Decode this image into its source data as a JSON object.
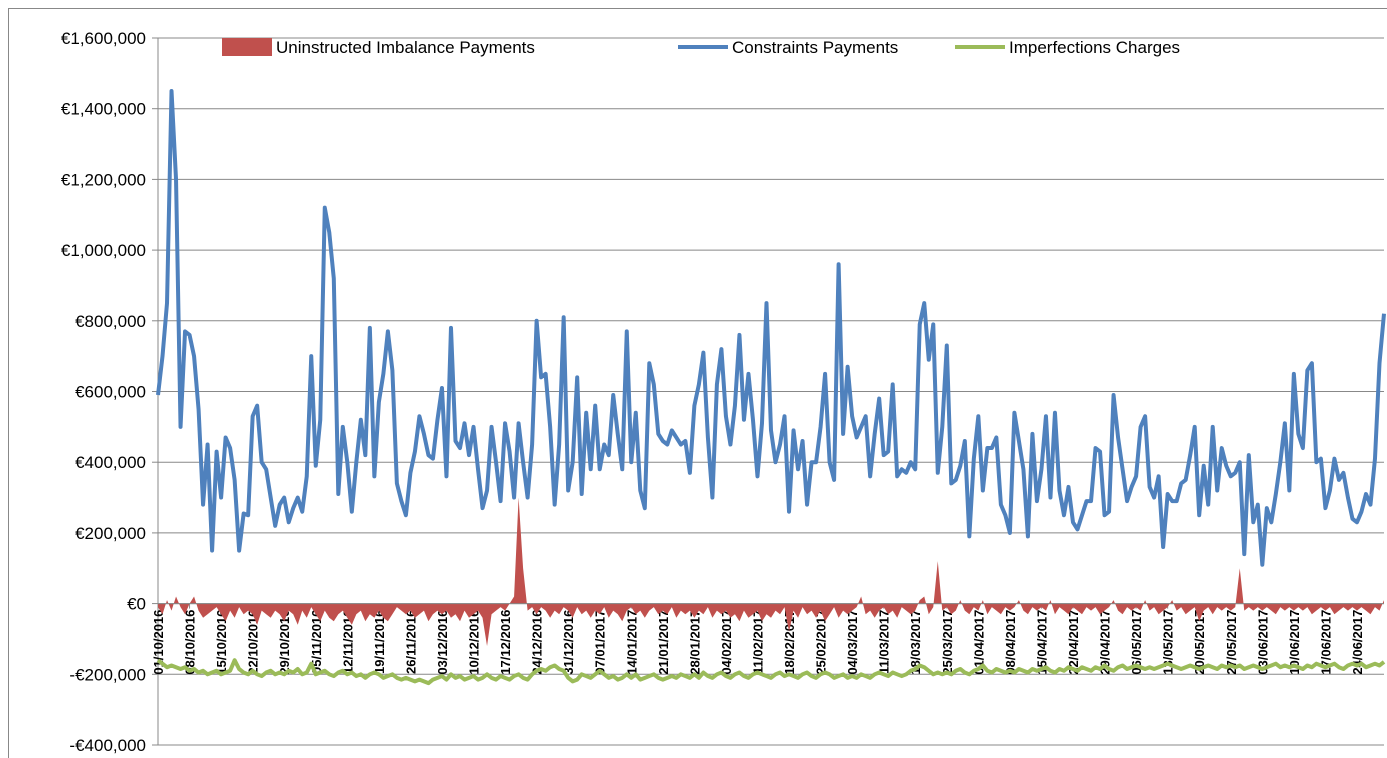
{
  "chart_data": {
    "type": "line",
    "legend": "top",
    "grid": true,
    "ylim": [
      -400000,
      1600000
    ],
    "yticks": [
      {
        "value": -400000,
        "label": "-€400,000"
      },
      {
        "value": -200000,
        "label": "-€200,000"
      },
      {
        "value": 0,
        "label": "€0"
      },
      {
        "value": 200000,
        "label": "€200,000"
      },
      {
        "value": 400000,
        "label": "€400,000"
      },
      {
        "value": 600000,
        "label": "€600,000"
      },
      {
        "value": 800000,
        "label": "€800,000"
      },
      {
        "value": 1000000,
        "label": "€1,000,000"
      },
      {
        "value": 1200000,
        "label": "€1,200,000"
      },
      {
        "value": 1400000,
        "label": "€1,400,000"
      },
      {
        "value": 1600000,
        "label": "€1,600,000"
      }
    ],
    "categories": [
      "01/10/2016",
      null,
      null,
      null,
      null,
      null,
      null,
      "08/10/2016",
      null,
      null,
      null,
      null,
      null,
      null,
      "15/10/2016",
      null,
      null,
      null,
      null,
      null,
      null,
      "22/10/2016",
      null,
      null,
      null,
      null,
      null,
      null,
      "29/10/2016",
      null,
      null,
      null,
      null,
      null,
      null,
      "05/11/2016",
      null,
      null,
      null,
      null,
      null,
      null,
      "12/11/2016",
      null,
      null,
      null,
      null,
      null,
      null,
      "19/11/2016",
      null,
      null,
      null,
      null,
      null,
      null,
      "26/11/2016",
      null,
      null,
      null,
      null,
      null,
      null,
      "03/12/2016",
      null,
      null,
      null,
      null,
      null,
      null,
      "10/12/2016",
      null,
      null,
      null,
      null,
      null,
      null,
      "17/12/2016",
      null,
      null,
      null,
      null,
      null,
      null,
      "24/12/2016",
      null,
      null,
      null,
      null,
      null,
      null,
      "31/12/2016",
      null,
      null,
      null,
      null,
      null,
      null,
      "07/01/2017",
      null,
      null,
      null,
      null,
      null,
      null,
      "14/01/2017",
      null,
      null,
      null,
      null,
      null,
      null,
      "21/01/2017",
      null,
      null,
      null,
      null,
      null,
      null,
      "28/01/2017",
      null,
      null,
      null,
      null,
      null,
      null,
      "04/02/2017",
      null,
      null,
      null,
      null,
      null,
      null,
      "11/02/2017",
      null,
      null,
      null,
      null,
      null,
      null,
      "18/02/2017",
      null,
      null,
      null,
      null,
      null,
      null,
      "25/02/2017",
      null,
      null,
      null,
      null,
      null,
      null,
      "04/03/2017",
      null,
      null,
      null,
      null,
      null,
      null,
      "11/03/2017",
      null,
      null,
      null,
      null,
      null,
      null,
      "18/03/2017",
      null,
      null,
      null,
      null,
      null,
      null,
      "25/03/2017",
      null,
      null,
      null,
      null,
      null,
      null,
      "01/04/2017",
      null,
      null,
      null,
      null,
      null,
      null,
      "08/04/2017",
      null,
      null,
      null,
      null,
      null,
      null,
      "15/04/2017",
      null,
      null,
      null,
      null,
      null,
      null,
      "22/04/2017",
      null,
      null,
      null,
      null,
      null,
      null,
      "29/04/2017",
      null,
      null,
      null,
      null,
      null,
      null,
      "06/05/2017",
      null,
      null,
      null,
      null,
      null,
      null,
      "13/05/2017",
      null,
      null,
      null,
      null,
      null,
      null,
      "20/05/2017",
      null,
      null,
      null,
      null,
      null,
      null,
      "27/05/2017",
      null,
      null,
      null,
      null,
      null,
      null,
      "03/06/2017",
      null,
      null,
      null,
      null,
      null,
      null,
      "10/06/2017",
      null,
      null,
      null,
      null,
      null,
      null,
      "17/06/2017",
      null,
      null,
      null,
      null,
      null,
      null,
      "24/06/2017",
      null,
      null,
      null,
      null,
      null,
      null
    ],
    "series": [
      {
        "name": "Uninstructed Imbalance Payments",
        "kind": "area",
        "color": "#c0504d",
        "values": [
          -10000,
          -30000,
          10000,
          -20000,
          20000,
          -10000,
          -30000,
          0,
          20000,
          -20000,
          -40000,
          -30000,
          -20000,
          -10000,
          -30000,
          -50000,
          -20000,
          -40000,
          -10000,
          -30000,
          -20000,
          -30000,
          -60000,
          -20000,
          -30000,
          -40000,
          -20000,
          -30000,
          -50000,
          -20000,
          -30000,
          -60000,
          -20000,
          -40000,
          -10000,
          -30000,
          -50000,
          -20000,
          -40000,
          -50000,
          -30000,
          -20000,
          -40000,
          -60000,
          -30000,
          -20000,
          -50000,
          -30000,
          -40000,
          -20000,
          -40000,
          -50000,
          -30000,
          -10000,
          -20000,
          -30000,
          -20000,
          -40000,
          -30000,
          -20000,
          -50000,
          -30000,
          -20000,
          -30000,
          -20000,
          -40000,
          -30000,
          -50000,
          -20000,
          -40000,
          -30000,
          -20000,
          -40000,
          -120000,
          -30000,
          -20000,
          -10000,
          -20000,
          0,
          20000,
          300000,
          100000,
          -20000,
          -10000,
          -30000,
          -10000,
          -20000,
          -40000,
          -20000,
          -30000,
          -10000,
          -20000,
          -40000,
          -10000,
          -30000,
          -20000,
          -40000,
          -20000,
          -30000,
          -10000,
          -40000,
          -20000,
          -30000,
          -50000,
          -20000,
          -10000,
          -30000,
          -20000,
          -40000,
          -20000,
          -10000,
          -30000,
          -20000,
          -30000,
          -10000,
          -40000,
          -20000,
          -30000,
          -20000,
          -40000,
          -20000,
          -30000,
          -10000,
          -40000,
          -20000,
          -30000,
          -20000,
          -40000,
          -30000,
          -50000,
          -20000,
          -40000,
          -30000,
          -20000,
          -50000,
          -30000,
          -40000,
          -20000,
          -30000,
          -10000,
          -80000,
          -20000,
          -40000,
          -10000,
          -30000,
          -20000,
          -40000,
          -20000,
          -50000,
          -30000,
          -10000,
          -40000,
          -20000,
          -30000,
          -20000,
          -10000,
          20000,
          -30000,
          -20000,
          -40000,
          -20000,
          -10000,
          -30000,
          -20000,
          -40000,
          -10000,
          -20000,
          -30000,
          -20000,
          10000,
          20000,
          -30000,
          -10000,
          120000,
          -20000,
          -10000,
          -30000,
          -20000,
          10000,
          -20000,
          -30000,
          -10000,
          -20000,
          10000,
          -30000,
          -10000,
          -20000,
          -30000,
          -10000,
          -20000,
          -10000,
          10000,
          -20000,
          -30000,
          -10000,
          -20000,
          -10000,
          -20000,
          10000,
          -30000,
          -10000,
          -20000,
          -30000,
          -10000,
          -20000,
          -30000,
          -10000,
          -20000,
          -10000,
          -30000,
          -20000,
          -10000,
          10000,
          -20000,
          -30000,
          -10000,
          -20000,
          -10000,
          -20000,
          10000,
          -20000,
          -10000,
          -30000,
          -20000,
          -10000,
          10000,
          -20000,
          -10000,
          -30000,
          -20000,
          -10000,
          -50000,
          -20000,
          -10000,
          -30000,
          -10000,
          -20000,
          -10000,
          -20000,
          -10000,
          100000,
          -20000,
          -10000,
          -20000,
          -10000,
          -20000,
          -10000,
          -20000,
          -30000,
          -10000,
          -20000,
          -10000,
          -20000,
          -10000,
          -20000,
          -10000,
          -30000,
          -20000,
          -10000,
          -20000,
          -10000,
          -30000,
          -20000,
          -10000,
          -20000,
          -10000,
          -20000,
          -10000,
          -20000,
          -30000,
          -10000,
          -20000,
          10000
        ]
      },
      {
        "name": "Constraints Payments",
        "kind": "line",
        "color": "#4f81bd",
        "values": [
          590000,
          700000,
          850000,
          1450000,
          1200000,
          500000,
          770000,
          760000,
          700000,
          550000,
          280000,
          450000,
          150000,
          430000,
          300000,
          470000,
          440000,
          350000,
          150000,
          255000,
          250000,
          530000,
          560000,
          400000,
          380000,
          300000,
          220000,
          280000,
          300000,
          230000,
          270000,
          300000,
          260000,
          360000,
          700000,
          390000,
          520000,
          1120000,
          1050000,
          920000,
          310000,
          500000,
          400000,
          260000,
          400000,
          520000,
          420000,
          780000,
          360000,
          570000,
          650000,
          770000,
          660000,
          340000,
          290000,
          250000,
          370000,
          430000,
          530000,
          480000,
          420000,
          410000,
          520000,
          610000,
          360000,
          780000,
          460000,
          440000,
          510000,
          420000,
          500000,
          380000,
          270000,
          320000,
          500000,
          400000,
          290000,
          510000,
          430000,
          300000,
          510000,
          400000,
          300000,
          450000,
          800000,
          640000,
          650000,
          500000,
          280000,
          450000,
          810000,
          320000,
          400000,
          640000,
          310000,
          540000,
          380000,
          560000,
          380000,
          450000,
          420000,
          590000,
          480000,
          380000,
          770000,
          400000,
          540000,
          320000,
          270000,
          680000,
          620000,
          480000,
          460000,
          450000,
          490000,
          470000,
          450000,
          460000,
          370000,
          560000,
          620000,
          710000,
          470000,
          300000,
          620000,
          720000,
          530000,
          450000,
          560000,
          760000,
          520000,
          650000,
          520000,
          360000,
          510000,
          850000,
          490000,
          400000,
          450000,
          530000,
          260000,
          490000,
          380000,
          460000,
          280000,
          400000,
          400000,
          500000,
          650000,
          400000,
          350000,
          960000,
          480000,
          670000,
          530000,
          470000,
          500000,
          530000,
          360000,
          480000,
          580000,
          420000,
          430000,
          620000,
          360000,
          380000,
          370000,
          400000,
          380000,
          790000,
          850000,
          690000,
          790000,
          370000,
          500000,
          730000,
          340000,
          350000,
          390000,
          460000,
          190000,
          410000,
          530000,
          320000,
          440000,
          440000,
          470000,
          280000,
          250000,
          200000,
          540000,
          460000,
          380000,
          190000,
          480000,
          290000,
          380000,
          530000,
          300000,
          540000,
          320000,
          250000,
          330000,
          230000,
          210000,
          250000,
          290000,
          290000,
          440000,
          430000,
          250000,
          260000,
          590000,
          470000,
          380000,
          290000,
          330000,
          360000,
          500000,
          530000,
          330000,
          300000,
          360000,
          160000,
          310000,
          290000,
          290000,
          340000,
          350000,
          420000,
          500000,
          250000,
          390000,
          280000,
          500000,
          320000,
          440000,
          390000,
          360000,
          370000,
          400000,
          140000,
          420000,
          230000,
          280000,
          110000,
          270000,
          230000,
          310000,
          400000,
          510000,
          320000,
          650000,
          480000,
          440000,
          660000,
          680000,
          400000,
          410000,
          270000,
          320000,
          410000,
          350000,
          370000,
          300000,
          240000,
          230000,
          260000,
          310000,
          280000,
          410000,
          680000,
          820000
        ]
      },
      {
        "name": "Imperfections Charges",
        "kind": "line",
        "color": "#9bbb59",
        "values": [
          -160000,
          -170000,
          -180000,
          -175000,
          -180000,
          -185000,
          -180000,
          -190000,
          -185000,
          -195000,
          -190000,
          -200000,
          -195000,
          -190000,
          -200000,
          -195000,
          -190000,
          -160000,
          -185000,
          -195000,
          -200000,
          -190000,
          -200000,
          -205000,
          -195000,
          -190000,
          -200000,
          -195000,
          -200000,
          -190000,
          -195000,
          -185000,
          -200000,
          -195000,
          -170000,
          -200000,
          -195000,
          -190000,
          -200000,
          -205000,
          -195000,
          -190000,
          -200000,
          -195000,
          -205000,
          -200000,
          -210000,
          -200000,
          -195000,
          -200000,
          -210000,
          -205000,
          -200000,
          -210000,
          -215000,
          -210000,
          -215000,
          -220000,
          -215000,
          -220000,
          -225000,
          -215000,
          -210000,
          -205000,
          -215000,
          -200000,
          -210000,
          -205000,
          -215000,
          -210000,
          -205000,
          -215000,
          -210000,
          -200000,
          -210000,
          -215000,
          -205000,
          -210000,
          -215000,
          -205000,
          -200000,
          -210000,
          -215000,
          -200000,
          -190000,
          -185000,
          -190000,
          -180000,
          -175000,
          -185000,
          -190000,
          -210000,
          -220000,
          -215000,
          -200000,
          -205000,
          -210000,
          -200000,
          -190000,
          -200000,
          -210000,
          -205000,
          -215000,
          -210000,
          -200000,
          -210000,
          -200000,
          -215000,
          -210000,
          -205000,
          -200000,
          -210000,
          -215000,
          -210000,
          -205000,
          -210000,
          -200000,
          -205000,
          -210000,
          -200000,
          -210000,
          -195000,
          -205000,
          -210000,
          -200000,
          -195000,
          -205000,
          -210000,
          -200000,
          -195000,
          -205000,
          -210000,
          -200000,
          -195000,
          -200000,
          -205000,
          -210000,
          -200000,
          -195000,
          -205000,
          -200000,
          -205000,
          -210000,
          -200000,
          -195000,
          -205000,
          -210000,
          -200000,
          -195000,
          -200000,
          -210000,
          -205000,
          -200000,
          -210000,
          -205000,
          -210000,
          -200000,
          -205000,
          -210000,
          -200000,
          -195000,
          -200000,
          -205000,
          -195000,
          -200000,
          -205000,
          -200000,
          -190000,
          -185000,
          -175000,
          -180000,
          -190000,
          -200000,
          -195000,
          -200000,
          -195000,
          -200000,
          -190000,
          -185000,
          -195000,
          -200000,
          -190000,
          -185000,
          -175000,
          -190000,
          -195000,
          -185000,
          -190000,
          -195000,
          -190000,
          -195000,
          -185000,
          -190000,
          -195000,
          -185000,
          -190000,
          -185000,
          -180000,
          -190000,
          -195000,
          -185000,
          -190000,
          -180000,
          -185000,
          -190000,
          -180000,
          -185000,
          -190000,
          -180000,
          -185000,
          -175000,
          -185000,
          -190000,
          -180000,
          -175000,
          -185000,
          -180000,
          -175000,
          -180000,
          -185000,
          -180000,
          -185000,
          -180000,
          -175000,
          -170000,
          -175000,
          -180000,
          -185000,
          -180000,
          -175000,
          -180000,
          -185000,
          -180000,
          -175000,
          -180000,
          -185000,
          -175000,
          -180000,
          -175000,
          -180000,
          -175000,
          -185000,
          -180000,
          -175000,
          -180000,
          -185000,
          -180000,
          -175000,
          -170000,
          -180000,
          -175000,
          -180000,
          -175000,
          -180000,
          -185000,
          -175000,
          -180000,
          -170000,
          -175000,
          -180000,
          -175000,
          -170000,
          -180000,
          -185000,
          -175000,
          -170000,
          -175000,
          -170000,
          -180000,
          -175000,
          -170000,
          -175000,
          -165000
        ]
      }
    ]
  }
}
